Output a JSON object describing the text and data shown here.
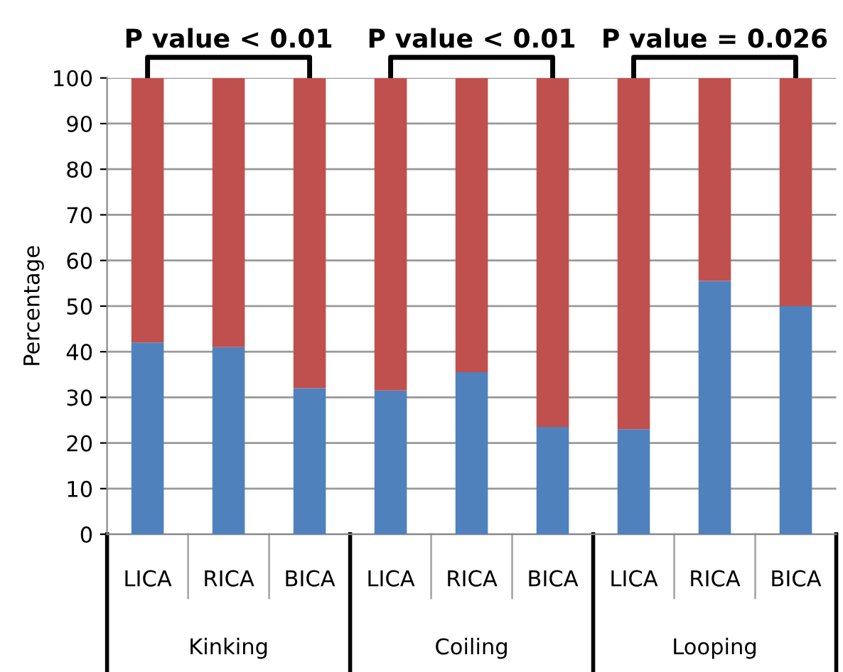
{
  "chart_data": {
    "type": "bar",
    "stacked": true,
    "ylabel": "Percentage",
    "categories": [
      "LICA",
      "RICA",
      "BICA",
      "LICA",
      "RICA",
      "BICA",
      "LICA",
      "RICA",
      "BICA"
    ],
    "series": [
      {
        "color": "#4f81bd",
        "values": [
          42,
          41,
          32,
          31.5,
          35.5,
          23.5,
          23,
          55.5,
          50
        ]
      },
      {
        "color": "#c0504d",
        "values": [
          58,
          59,
          68,
          68.5,
          64.5,
          76.5,
          77,
          44.5,
          50
        ]
      }
    ],
    "ylim": [
      0,
      100
    ],
    "yticks": [
      0,
      10,
      20,
      30,
      40,
      50,
      60,
      70,
      80,
      90,
      100
    ],
    "grid": "y",
    "legend": false,
    "annotations": [
      "P value < 0.01",
      "P value < 0.01",
      "P value = 0.026",
      "Kinking",
      "Coiling",
      "Looping"
    ]
  }
}
